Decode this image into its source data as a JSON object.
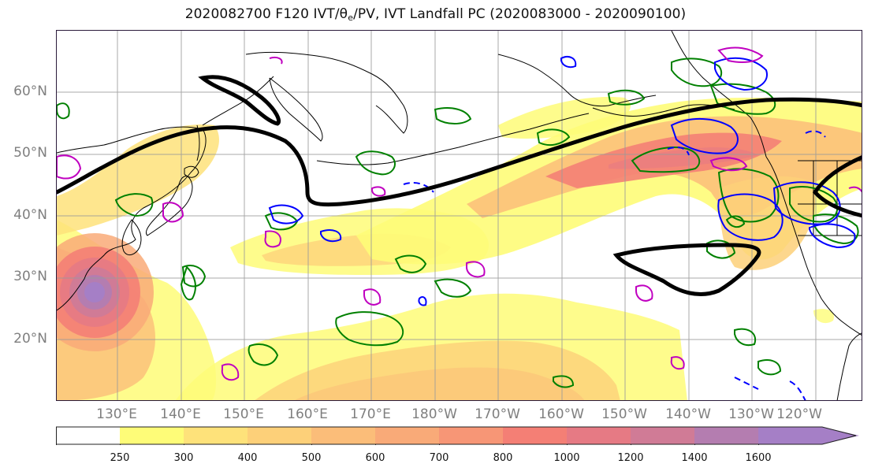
{
  "title_prefix": "2020082700 F120 IVT/",
  "title_theta": "θ",
  "title_sub": "e",
  "title_suffix": "/PV, IVT Landfall PC (2020083000 - 2020090100)",
  "lat_labels": [
    "60°N",
    "50°N",
    "40°N",
    "30°N",
    "20°N"
  ],
  "lon_labels": [
    "130°E",
    "140°E",
    "150°E",
    "160°E",
    "170°E",
    "180°W",
    "170°W",
    "160°W",
    "150°W",
    "140°W",
    "130°W",
    "120°W"
  ],
  "colorbar": {
    "levels": [
      "250",
      "300",
      "400",
      "500",
      "600",
      "700",
      "800",
      "1000",
      "1200",
      "1400",
      "1600"
    ],
    "colors": [
      "#ffffff",
      "#fefc78",
      "#fee27a",
      "#fdd079",
      "#fbbd79",
      "#f9aa78",
      "#f79676",
      "#f47f75",
      "#e67a84",
      "#d07b96",
      "#b47db0",
      "#a57fc6"
    ],
    "extend": "max"
  },
  "colors": {
    "fill_low": "#fefc78",
    "fill_mid": "#fbbd79",
    "fill_high": "#f47f75",
    "fill_max": "#a57fc6",
    "pc_contour": "#000000",
    "theta_contour": "#008000",
    "pv_contour": "#0000ff",
    "magenta_contour": "#c000c0",
    "gridline": "#9a9a9a",
    "coastline": "#000000"
  }
}
